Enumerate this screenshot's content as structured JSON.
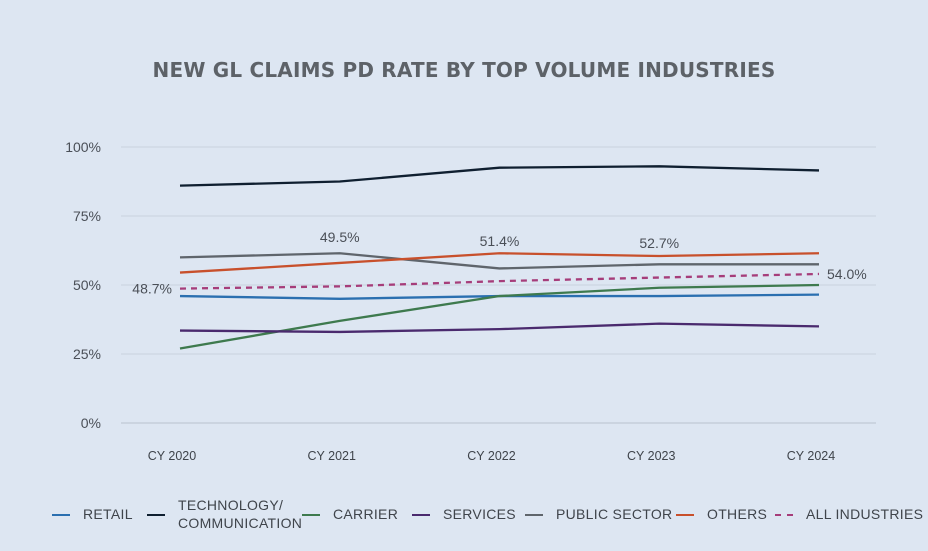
{
  "chart_data": {
    "type": "line",
    "title": "NEW GL CLAIMS PD RATE BY TOP VOLUME INDUSTRIES",
    "xlabel": "",
    "ylabel": "",
    "categories": [
      "CY 2020",
      "CY 2021",
      "CY 2022",
      "CY 2023",
      "CY 2024"
    ],
    "ylim": [
      0,
      100
    ],
    "yticks": [
      "0%",
      "25%",
      "50%",
      "75%",
      "100%"
    ],
    "grid": true,
    "legend_position": "bottom",
    "series": [
      {
        "name": "RETAIL",
        "color": "#2a6fb0",
        "dashed": false,
        "values": [
          46,
          45,
          46,
          46,
          46.5
        ]
      },
      {
        "name": "TECHNOLOGY/\nCOMMUNICATION",
        "color": "#0f1f30",
        "dashed": false,
        "values": [
          86,
          87.5,
          92.5,
          93,
          91.5
        ]
      },
      {
        "name": "CARRIER",
        "color": "#3e7a4e",
        "dashed": false,
        "values": [
          27,
          37,
          46,
          49,
          50
        ]
      },
      {
        "name": "SERVICES",
        "color": "#4a2a6e",
        "dashed": false,
        "values": [
          33.5,
          33,
          34,
          36,
          35
        ]
      },
      {
        "name": "PUBLIC SECTOR",
        "color": "#5f656c",
        "dashed": false,
        "values": [
          60,
          61.5,
          56,
          57.5,
          57.5
        ]
      },
      {
        "name": "OTHERS",
        "color": "#c8502c",
        "dashed": false,
        "values": [
          54.5,
          58,
          61.5,
          60.5,
          61.5
        ]
      },
      {
        "name": "ALL INDUSTRIES",
        "color": "#a63d7a",
        "dashed": true,
        "values": [
          48.7,
          49.5,
          51.4,
          52.7,
          54.0
        ],
        "data_labels": [
          "48.7%",
          "49.5%",
          "51.4%",
          "52.7%",
          "54.0%"
        ]
      }
    ]
  }
}
